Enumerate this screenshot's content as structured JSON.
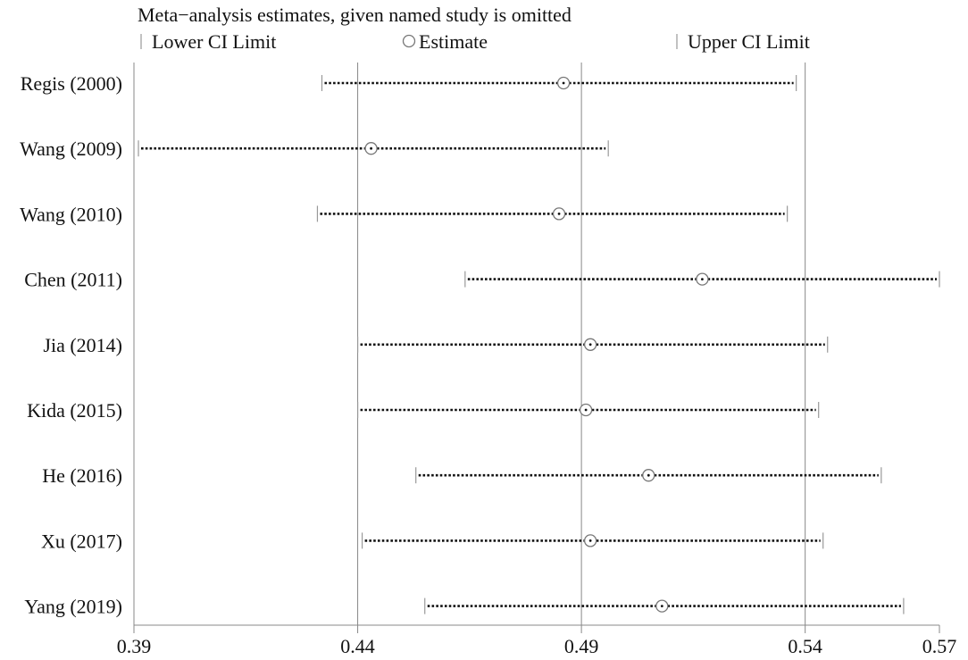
{
  "chart_data": {
    "type": "forest",
    "title": "Meta−analysis estimates, given named study is omitted",
    "legend": {
      "items": [
        {
          "symbol": "bar",
          "label": "Lower CI Limit"
        },
        {
          "symbol": "circle",
          "label": "Estimate"
        },
        {
          "symbol": "bar",
          "label": "Upper CI Limit"
        }
      ],
      "placement": "top"
    },
    "xlim": [
      0.39,
      0.57
    ],
    "xticks": [
      0.39,
      0.44,
      0.49,
      0.54,
      0.57
    ],
    "xtick_labels": [
      "0.39",
      "0.44",
      "0.49",
      "0.54",
      "0.57"
    ],
    "reference_lines": [
      0.44,
      0.49,
      0.54
    ],
    "studies": [
      {
        "label": "Regis (2000)",
        "lower": 0.432,
        "estimate": 0.486,
        "upper": 0.538
      },
      {
        "label": "Wang (2009)",
        "lower": 0.391,
        "estimate": 0.443,
        "upper": 0.496
      },
      {
        "label": "Wang (2010)",
        "lower": 0.431,
        "estimate": 0.485,
        "upper": 0.536
      },
      {
        "label": "Chen (2011)",
        "lower": 0.464,
        "estimate": 0.517,
        "upper": 0.57
      },
      {
        "label": "Jia (2014)",
        "lower": 0.44,
        "estimate": 0.492,
        "upper": 0.545
      },
      {
        "label": "Kida (2015)",
        "lower": 0.44,
        "estimate": 0.491,
        "upper": 0.543
      },
      {
        "label": "He (2016)",
        "lower": 0.453,
        "estimate": 0.505,
        "upper": 0.557
      },
      {
        "label": "Xu (2017)",
        "lower": 0.441,
        "estimate": 0.492,
        "upper": 0.544
      },
      {
        "label": "Yang (2019)",
        "lower": 0.455,
        "estimate": 0.508,
        "upper": 0.562
      }
    ],
    "grid": false
  }
}
